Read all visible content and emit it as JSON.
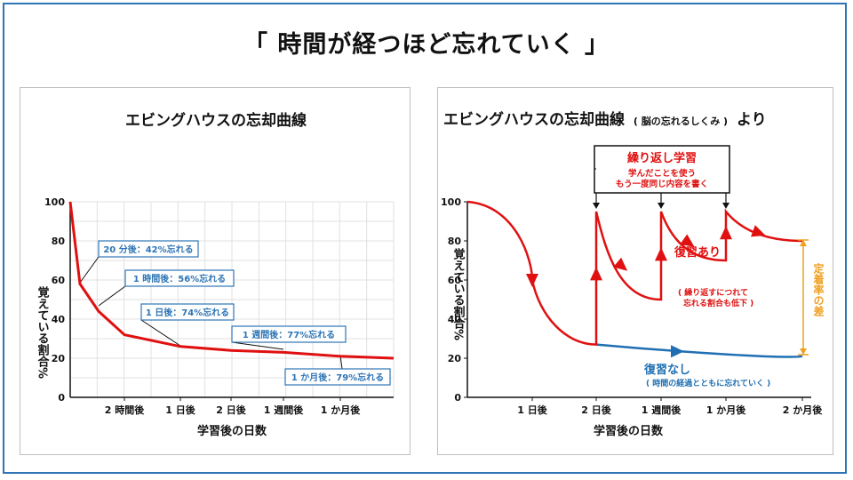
{
  "title": "「 時間が経つほど忘れていく 」",
  "colors": {
    "frame": "#2e75b6",
    "red": "#e01010",
    "blue": "#1f6fb2",
    "orange": "#f0a020",
    "label_border": "#2e75b6",
    "label_text": "#2e75b6",
    "grid": "#d9d9d9"
  },
  "left_chart": {
    "title": "エビングハウスの忘却曲線",
    "ylabel": "覚えている割合%",
    "xlabel": "学習後の日数",
    "y_ticks": [
      "0",
      "20",
      "40",
      "60",
      "80",
      "100"
    ],
    "x_ticks": [
      "2 時間後",
      "1 日後",
      "2 日後",
      "1 週間後",
      "1 か月後"
    ],
    "callouts": [
      "20 分後：42%忘れる",
      "1 時間後：56%忘れる",
      "1 日後：74%忘れる",
      "1 週間後：77%忘れる",
      "1 か月後：79%忘れる"
    ]
  },
  "right_chart": {
    "title": "エビングハウスの忘却曲線",
    "title_small": "( 脳の忘れるしくみ )",
    "title_tail": "より",
    "ylabel": "覚えている割合%",
    "xlabel": "学習後の日数",
    "y_ticks": [
      "0",
      "20",
      "40",
      "60",
      "80",
      "100"
    ],
    "x_ticks": [
      "1 日後",
      "2 日後",
      "1 週間後",
      "1 か月後",
      "2 か月後"
    ],
    "review_box_title": "繰り返し学習",
    "review_box_line1": "学んだことを使う",
    "review_box_line2": "もう一度同じ内容を書く",
    "with_review": "復習あり",
    "with_review_note1": "( 繰り返すにつれて",
    "with_review_note2": "忘れる割合も低下 )",
    "without_review": "復習なし",
    "without_review_note": "( 時間の経過とともに忘れていく )",
    "gap_label": "定着率の差"
  },
  "chart_data": [
    {
      "type": "line",
      "title": "エビングハウスの忘却曲線",
      "xlabel": "学習後の日数",
      "ylabel": "覚えている割合%",
      "ylim": [
        0,
        100
      ],
      "grid": true,
      "x_tick_labels": [
        "2 時間後",
        "1 日後",
        "2 日後",
        "1 週間後",
        "1 か月後"
      ],
      "series": [
        {
          "color": "#e01010",
          "points": [
            {
              "x": "0",
              "y": 100
            },
            {
              "x": "20 分後",
              "y": 58
            },
            {
              "x": "1 時間後",
              "y": 44
            },
            {
              "x": "2 時間後",
              "y": 32
            },
            {
              "x": "1 日後",
              "y": 26
            },
            {
              "x": "2 日後",
              "y": 24
            },
            {
              "x": "1 週間後",
              "y": 23
            },
            {
              "x": "1 か月後",
              "y": 21
            },
            {
              "x": "end",
              "y": 20
            }
          ]
        }
      ],
      "annotations": [
        "20 分後：42%忘れる",
        "1 時間後：56%忘れる",
        "1 日後：74%忘れる",
        "1 週間後：77%忘れる",
        "1 か月後：79%忘れる"
      ]
    },
    {
      "type": "line",
      "title": "エビングハウスの忘却曲線 ( 脳の忘れるしくみ ) より",
      "xlabel": "学習後の日数",
      "ylabel": "覚えている割合%",
      "ylim": [
        0,
        100
      ],
      "grid": false,
      "x_tick_labels": [
        "1 日後",
        "2 日後",
        "1 週間後",
        "1 か月後",
        "2 か月後"
      ],
      "series": [
        {
          "name": "復習なし",
          "color": "#1f6fb2",
          "points": [
            {
              "x": "2 日後",
              "y": 27
            },
            {
              "x": "1 週間後",
              "y": 24
            },
            {
              "x": "1 か月後",
              "y": 22
            },
            {
              "x": "2 か月後",
              "y": 21
            }
          ]
        },
        {
          "name": "復習あり",
          "color": "#e01010",
          "points": [
            {
              "x": "0",
              "y": 100
            },
            {
              "x": "1 日後",
              "y": 60
            },
            {
              "x": "2 日後",
              "y": 27
            },
            {
              "x": "2 日後",
              "y": 95
            },
            {
              "x": "1 週間後",
              "y": 50
            },
            {
              "x": "1 週間後",
              "y": 95
            },
            {
              "x": "1 か月後",
              "y": 70
            },
            {
              "x": "1 か月後",
              "y": 95
            },
            {
              "x": "2 か月後",
              "y": 80
            }
          ]
        }
      ],
      "annotations": [
        "繰り返し学習",
        "学んだことを使う",
        "もう一度同じ内容を書く",
        "復習あり",
        "( 繰り返すにつれて",
        "忘れる割合も低下 )",
        "復習なし",
        "( 時間の経過とともに忘れていく )",
        "定着率の差"
      ]
    }
  ]
}
